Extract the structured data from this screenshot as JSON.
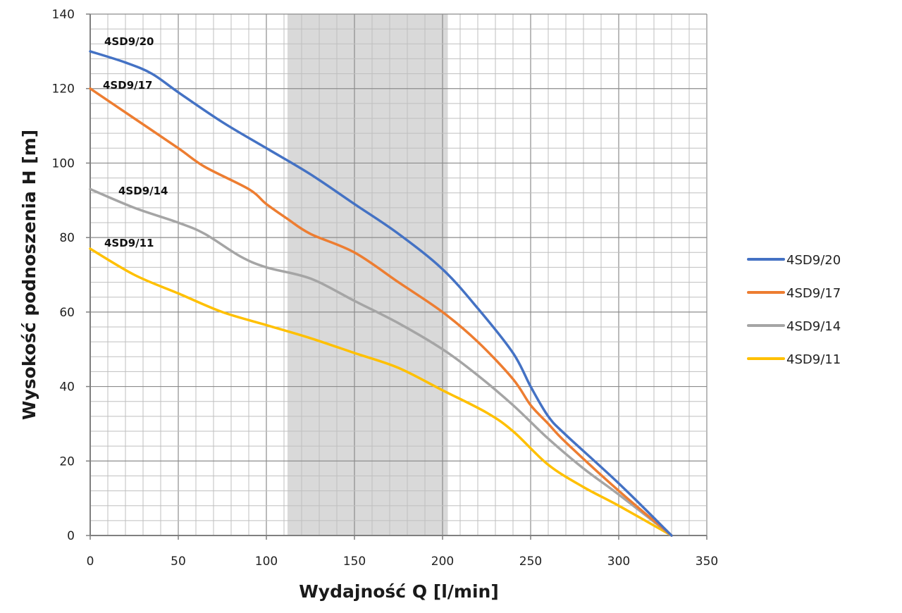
{
  "chart_data": {
    "type": "line",
    "title": "",
    "xlabel": "Wydajność Q [l/min]",
    "ylabel": "Wysokość podnoszenia H [m]",
    "xlim": [
      0,
      350
    ],
    "ylim": [
      0,
      140
    ],
    "x_ticks": [
      0,
      50,
      100,
      150,
      200,
      250,
      300,
      350
    ],
    "y_ticks": [
      0,
      20,
      40,
      60,
      80,
      100,
      120,
      140
    ],
    "x_minor_step": 10,
    "y_minor_step": 4,
    "grid": true,
    "legend_position": "right",
    "highlight_band": {
      "x_from": 112,
      "x_to": 203,
      "color": "#d9d9d9"
    },
    "series": [
      {
        "name": "4SD9/20",
        "color": "#4472c4",
        "label": "4SD9/20",
        "points": [
          [
            0,
            130
          ],
          [
            20,
            127
          ],
          [
            35,
            124
          ],
          [
            50,
            119
          ],
          [
            75,
            111
          ],
          [
            100,
            104
          ],
          [
            125,
            97
          ],
          [
            150,
            89
          ],
          [
            175,
            81
          ],
          [
            200,
            71.5
          ],
          [
            220,
            61
          ],
          [
            240,
            49
          ],
          [
            250,
            40
          ],
          [
            260,
            32
          ],
          [
            270,
            27
          ],
          [
            300,
            14
          ],
          [
            330,
            0
          ]
        ]
      },
      {
        "name": "4SD9/17",
        "color": "#ed7d31",
        "label": "4SD9/17",
        "points": [
          [
            0,
            120
          ],
          [
            25,
            112
          ],
          [
            50,
            104
          ],
          [
            65,
            99
          ],
          [
            90,
            93
          ],
          [
            100,
            89
          ],
          [
            112,
            85
          ],
          [
            125,
            81
          ],
          [
            150,
            76
          ],
          [
            175,
            68
          ],
          [
            200,
            60
          ],
          [
            220,
            52
          ],
          [
            240,
            42
          ],
          [
            250,
            35
          ],
          [
            260,
            30
          ],
          [
            270,
            25
          ],
          [
            300,
            12
          ],
          [
            330,
            0
          ]
        ]
      },
      {
        "name": "4SD9/14",
        "color": "#a5a5a5",
        "label": "4SD9/14",
        "points": [
          [
            0,
            93
          ],
          [
            25,
            88
          ],
          [
            50,
            84
          ],
          [
            65,
            81
          ],
          [
            85,
            75
          ],
          [
            100,
            72
          ],
          [
            125,
            69
          ],
          [
            150,
            63
          ],
          [
            175,
            57
          ],
          [
            200,
            50
          ],
          [
            220,
            43
          ],
          [
            240,
            35
          ],
          [
            260,
            26
          ],
          [
            280,
            18
          ],
          [
            300,
            11
          ],
          [
            330,
            0
          ]
        ]
      },
      {
        "name": "4SD9/11",
        "color": "#ffc000",
        "label": "4SD9/11",
        "points": [
          [
            0,
            77
          ],
          [
            25,
            70
          ],
          [
            50,
            65
          ],
          [
            75,
            60
          ],
          [
            100,
            56.5
          ],
          [
            125,
            53
          ],
          [
            150,
            49
          ],
          [
            175,
            45
          ],
          [
            200,
            39
          ],
          [
            225,
            33
          ],
          [
            240,
            28
          ],
          [
            260,
            19
          ],
          [
            280,
            13
          ],
          [
            300,
            8
          ],
          [
            330,
            0
          ]
        ]
      }
    ]
  }
}
